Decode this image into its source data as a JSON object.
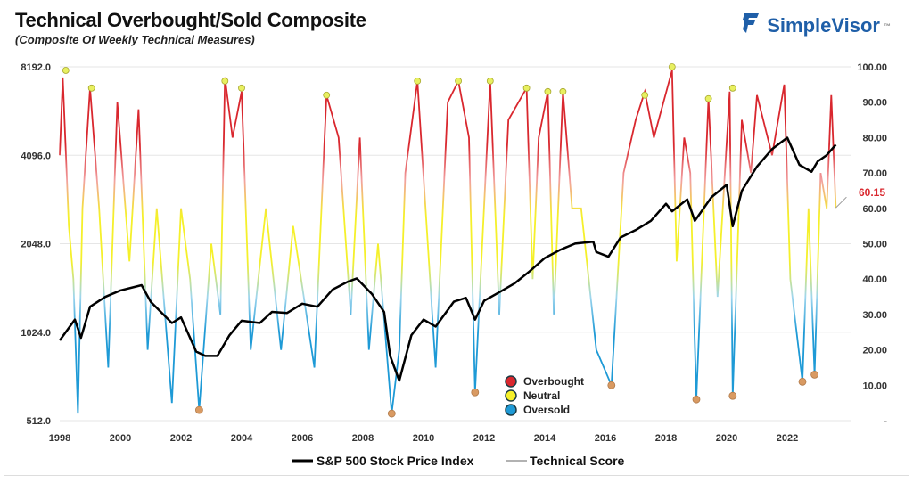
{
  "title": "Technical Overbought/Sold Composite",
  "subtitle": "(Composite Of Weekly Technical Measures)",
  "brand": {
    "name": "SimpleVisor",
    "tm": "™",
    "color": "#1f5fa8"
  },
  "chart_data": {
    "type": "line",
    "xlim": [
      1998,
      2023.9
    ],
    "x_ticks": [
      "1998",
      "2000",
      "2002",
      "2004",
      "2006",
      "2008",
      "2010",
      "2012",
      "2014",
      "2016",
      "2018",
      "2020",
      "2022"
    ],
    "left_axis": {
      "scale": "log2",
      "range": [
        512,
        8192
      ],
      "ticks": [
        "512.0",
        "1024.0",
        "2048.0",
        "4096.0",
        "8192.0"
      ]
    },
    "right_axis": {
      "range": [
        0,
        100
      ],
      "ticks": [
        "-",
        "10.00",
        "20.00",
        "30.00",
        "40.00",
        "50.00",
        "60.00",
        "70.00",
        "80.00",
        "90.00",
        "100.00"
      ]
    },
    "last_value_label": "60.15",
    "colors": {
      "overbought": "#d9272e",
      "neutral": "#f5f02a",
      "oversold": "#1e9ad6",
      "sp500": "#000000",
      "peak_marker": "#e8f060",
      "trough_marker": "#d99a62",
      "last_value": "#d9272e"
    },
    "legend": {
      "zones": [
        "Overbought",
        "Neutral",
        "Oversold"
      ],
      "series": [
        "S&P 500 Stock Price Index",
        "Technical Score"
      ]
    },
    "sp500": [
      [
        1998,
        960
      ],
      [
        1998.5,
        1130
      ],
      [
        1998.7,
        980
      ],
      [
        1999,
        1250
      ],
      [
        1999.5,
        1350
      ],
      [
        2000,
        1420
      ],
      [
        2000.7,
        1480
      ],
      [
        2001,
        1300
      ],
      [
        2001.7,
        1100
      ],
      [
        2002,
        1150
      ],
      [
        2002.5,
        880
      ],
      [
        2002.8,
        850
      ],
      [
        2003.2,
        850
      ],
      [
        2003.6,
        1000
      ],
      [
        2004,
        1120
      ],
      [
        2004.6,
        1100
      ],
      [
        2005,
        1200
      ],
      [
        2005.5,
        1190
      ],
      [
        2006,
        1280
      ],
      [
        2006.5,
        1250
      ],
      [
        2007,
        1430
      ],
      [
        2007.5,
        1520
      ],
      [
        2007.8,
        1560
      ],
      [
        2008.3,
        1380
      ],
      [
        2008.7,
        1200
      ],
      [
        2008.9,
        850
      ],
      [
        2009.2,
        700
      ],
      [
        2009.6,
        1000
      ],
      [
        2010,
        1130
      ],
      [
        2010.4,
        1070
      ],
      [
        2011,
        1300
      ],
      [
        2011.4,
        1340
      ],
      [
        2011.7,
        1130
      ],
      [
        2012,
        1310
      ],
      [
        2012.5,
        1400
      ],
      [
        2013,
        1500
      ],
      [
        2013.5,
        1650
      ],
      [
        2014,
        1830
      ],
      [
        2014.5,
        1950
      ],
      [
        2015,
        2050
      ],
      [
        2015.6,
        2080
      ],
      [
        2015.7,
        1920
      ],
      [
        2016.1,
        1850
      ],
      [
        2016.5,
        2150
      ],
      [
        2017,
        2280
      ],
      [
        2017.5,
        2450
      ],
      [
        2018,
        2800
      ],
      [
        2018.2,
        2640
      ],
      [
        2018.7,
        2900
      ],
      [
        2018.95,
        2450
      ],
      [
        2019.5,
        2950
      ],
      [
        2020,
        3250
      ],
      [
        2020.2,
        2350
      ],
      [
        2020.5,
        3100
      ],
      [
        2021,
        3750
      ],
      [
        2021.5,
        4300
      ],
      [
        2022,
        4700
      ],
      [
        2022.4,
        3800
      ],
      [
        2022.8,
        3600
      ],
      [
        2023,
        3900
      ],
      [
        2023.3,
        4100
      ],
      [
        2023.6,
        4450
      ]
    ],
    "technical_score": [
      [
        1998,
        75
      ],
      [
        1998.1,
        97
      ],
      [
        1998.3,
        55
      ],
      [
        1998.45,
        40
      ],
      [
        1998.6,
        2
      ],
      [
        1998.75,
        60
      ],
      [
        1999,
        94
      ],
      [
        1999.3,
        60
      ],
      [
        1999.6,
        15
      ],
      [
        1999.9,
        90
      ],
      [
        2000.3,
        45
      ],
      [
        2000.6,
        88
      ],
      [
        2000.9,
        20
      ],
      [
        2001.2,
        60
      ],
      [
        2001.7,
        5
      ],
      [
        2002,
        60
      ],
      [
        2002.3,
        40
      ],
      [
        2002.6,
        3
      ],
      [
        2003,
        50
      ],
      [
        2003.3,
        30
      ],
      [
        2003.45,
        97
      ],
      [
        2003.7,
        80
      ],
      [
        2004,
        93
      ],
      [
        2004.3,
        20
      ],
      [
        2004.8,
        60
      ],
      [
        2005.3,
        20
      ],
      [
        2005.7,
        55
      ],
      [
        2006.4,
        15
      ],
      [
        2006.8,
        92
      ],
      [
        2007.2,
        80
      ],
      [
        2007.6,
        30
      ],
      [
        2007.9,
        80
      ],
      [
        2008.2,
        20
      ],
      [
        2008.5,
        50
      ],
      [
        2008.95,
        2
      ],
      [
        2009.2,
        20
      ],
      [
        2009.4,
        70
      ],
      [
        2009.8,
        96
      ],
      [
        2010.4,
        15
      ],
      [
        2010.8,
        90
      ],
      [
        2011.15,
        96
      ],
      [
        2011.5,
        80
      ],
      [
        2011.7,
        8
      ],
      [
        2012.2,
        96
      ],
      [
        2012.5,
        30
      ],
      [
        2012.8,
        85
      ],
      [
        2013.4,
        94
      ],
      [
        2013.6,
        40
      ],
      [
        2013.8,
        80
      ],
      [
        2014.1,
        93
      ],
      [
        2014.3,
        30
      ],
      [
        2014.6,
        93
      ],
      [
        2014.9,
        60
      ],
      [
        2015.2,
        60
      ],
      [
        2015.7,
        20
      ],
      [
        2016.2,
        10
      ],
      [
        2016.6,
        70
      ],
      [
        2017,
        85
      ],
      [
        2017.3,
        93
      ],
      [
        2017.6,
        80
      ],
      [
        2018.2,
        99
      ],
      [
        2018.35,
        45
      ],
      [
        2018.6,
        80
      ],
      [
        2018.8,
        70
      ],
      [
        2019,
        6
      ],
      [
        2019.4,
        91
      ],
      [
        2019.7,
        35
      ],
      [
        2020.1,
        93
      ],
      [
        2020.2,
        7
      ],
      [
        2020.5,
        85
      ],
      [
        2020.8,
        70
      ],
      [
        2021,
        92
      ],
      [
        2021.5,
        75
      ],
      [
        2021.9,
        95
      ],
      [
        2022.1,
        40
      ],
      [
        2022.5,
        11
      ],
      [
        2022.7,
        60
      ],
      [
        2022.9,
        13
      ],
      [
        2023.1,
        70
      ],
      [
        2023.3,
        60
      ],
      [
        2023.45,
        92
      ],
      [
        2023.6,
        60.15
      ]
    ],
    "peaks": [
      [
        1998.2,
        99
      ],
      [
        1999.05,
        94
      ],
      [
        2003.45,
        96
      ],
      [
        2004,
        94
      ],
      [
        2006.8,
        92
      ],
      [
        2009.8,
        96
      ],
      [
        2011.15,
        96
      ],
      [
        2012.2,
        96
      ],
      [
        2013.4,
        94
      ],
      [
        2014.1,
        93
      ],
      [
        2014.6,
        93
      ],
      [
        2017.3,
        92
      ],
      [
        2018.2,
        100
      ],
      [
        2019.4,
        91
      ],
      [
        2020.2,
        94
      ]
    ],
    "troughs": [
      [
        2002.6,
        3
      ],
      [
        2008.95,
        2
      ],
      [
        2011.7,
        8
      ],
      [
        2016.2,
        10
      ],
      [
        2019,
        6
      ],
      [
        2020.2,
        7
      ],
      [
        2022.5,
        11
      ],
      [
        2022.9,
        13
      ]
    ]
  }
}
